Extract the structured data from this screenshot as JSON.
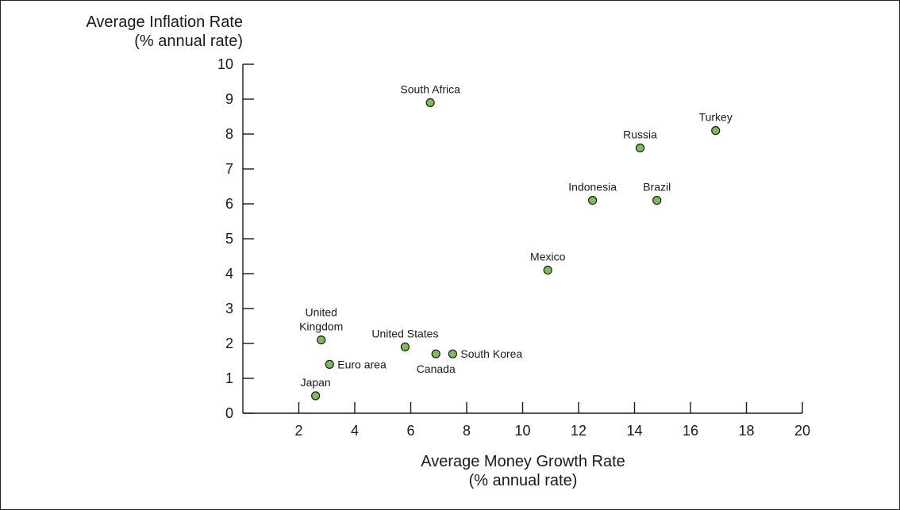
{
  "chart_data": {
    "type": "scatter",
    "ylabel_lines": [
      "Average Inflation Rate",
      "(% annual rate)"
    ],
    "xlabel_lines": [
      "Average Money Growth Rate",
      "(% annual rate)"
    ],
    "xlim": [
      0,
      20
    ],
    "ylim": [
      0,
      10
    ],
    "x_ticks": [
      2,
      4,
      6,
      8,
      10,
      12,
      14,
      16,
      18,
      20
    ],
    "y_ticks": [
      0,
      1,
      2,
      3,
      4,
      5,
      6,
      7,
      8,
      9,
      10
    ],
    "grid": false,
    "point_color": "#7fba5e",
    "points": [
      {
        "label_lines": [
          "South Africa"
        ],
        "x": 6.7,
        "y": 8.9,
        "label_pos": "above"
      },
      {
        "label_lines": [
          "Turkey"
        ],
        "x": 16.9,
        "y": 8.1,
        "label_pos": "above"
      },
      {
        "label_lines": [
          "Russia"
        ],
        "x": 14.2,
        "y": 7.6,
        "label_pos": "above"
      },
      {
        "label_lines": [
          "Indonesia"
        ],
        "x": 12.5,
        "y": 6.1,
        "label_pos": "above"
      },
      {
        "label_lines": [
          "Brazil"
        ],
        "x": 14.8,
        "y": 6.1,
        "label_pos": "above"
      },
      {
        "label_lines": [
          "Mexico"
        ],
        "x": 10.9,
        "y": 4.1,
        "label_pos": "above"
      },
      {
        "label_lines": [
          "United",
          "Kingdom"
        ],
        "x": 2.8,
        "y": 2.1,
        "label_pos": "above"
      },
      {
        "label_lines": [
          "United States"
        ],
        "x": 5.8,
        "y": 1.9,
        "label_pos": "above"
      },
      {
        "label_lines": [
          "Canada"
        ],
        "x": 6.9,
        "y": 1.7,
        "label_pos": "below"
      },
      {
        "label_lines": [
          "South Korea"
        ],
        "x": 7.5,
        "y": 1.7,
        "label_pos": "right"
      },
      {
        "label_lines": [
          "Euro area"
        ],
        "x": 3.1,
        "y": 1.4,
        "label_pos": "right"
      },
      {
        "label_lines": [
          "Japan"
        ],
        "x": 2.6,
        "y": 0.5,
        "label_pos": "above"
      }
    ]
  }
}
